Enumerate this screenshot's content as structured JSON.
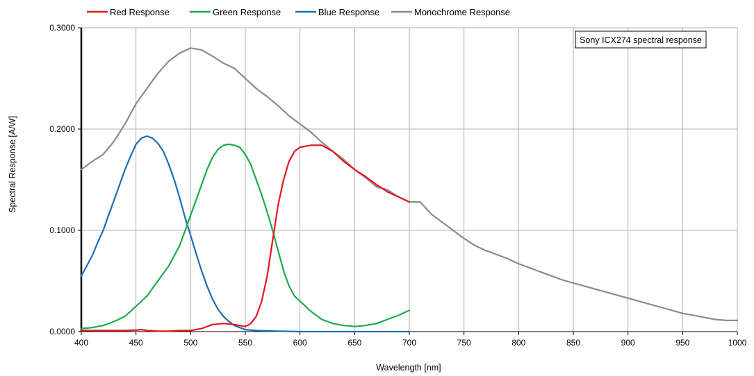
{
  "chart_data": {
    "type": "line",
    "title": "",
    "annotation": "Sony ICX274 spectral response",
    "xlabel": "Wavelength [nm]",
    "ylabel": "Spectral Response [A/W]",
    "xlim": [
      400,
      1000
    ],
    "ylim": [
      0,
      0.3
    ],
    "x_ticks": [
      "400",
      "450",
      "500",
      "550",
      "600",
      "650",
      "700",
      "750",
      "800",
      "850",
      "900",
      "950",
      "1000"
    ],
    "y_ticks": [
      "0.0000",
      "0.1000",
      "0.2000",
      "0.3000"
    ],
    "grid": true,
    "legend_position": "top",
    "series": [
      {
        "name": "Red Response",
        "color": "#e8141c",
        "points": [
          [
            400,
            0.001
          ],
          [
            420,
            0.001
          ],
          [
            440,
            0.001
          ],
          [
            450,
            0.0015
          ],
          [
            455,
            0.002
          ],
          [
            460,
            0.001
          ],
          [
            470,
            0.0005
          ],
          [
            480,
            0.0005
          ],
          [
            490,
            0.001
          ],
          [
            500,
            0.001
          ],
          [
            510,
            0.003
          ],
          [
            520,
            0.007
          ],
          [
            530,
            0.008
          ],
          [
            540,
            0.007
          ],
          [
            550,
            0.005
          ],
          [
            555,
            0.008
          ],
          [
            560,
            0.015
          ],
          [
            565,
            0.03
          ],
          [
            570,
            0.055
          ],
          [
            575,
            0.09
          ],
          [
            580,
            0.125
          ],
          [
            585,
            0.15
          ],
          [
            590,
            0.168
          ],
          [
            595,
            0.178
          ],
          [
            600,
            0.182
          ],
          [
            610,
            0.184
          ],
          [
            620,
            0.184
          ],
          [
            630,
            0.178
          ],
          [
            640,
            0.168
          ],
          [
            650,
            0.16
          ],
          [
            660,
            0.153
          ],
          [
            670,
            0.145
          ],
          [
            680,
            0.138
          ],
          [
            690,
            0.133
          ],
          [
            700,
            0.128
          ]
        ]
      },
      {
        "name": "Green Response",
        "color": "#1aab4a",
        "points": [
          [
            400,
            0.003
          ],
          [
            410,
            0.004
          ],
          [
            420,
            0.006
          ],
          [
            430,
            0.01
          ],
          [
            440,
            0.015
          ],
          [
            450,
            0.025
          ],
          [
            460,
            0.035
          ],
          [
            470,
            0.05
          ],
          [
            480,
            0.065
          ],
          [
            490,
            0.085
          ],
          [
            495,
            0.1
          ],
          [
            500,
            0.115
          ],
          [
            505,
            0.13
          ],
          [
            510,
            0.145
          ],
          [
            515,
            0.16
          ],
          [
            520,
            0.172
          ],
          [
            525,
            0.18
          ],
          [
            530,
            0.184
          ],
          [
            535,
            0.185
          ],
          [
            540,
            0.184
          ],
          [
            545,
            0.182
          ],
          [
            550,
            0.175
          ],
          [
            555,
            0.165
          ],
          [
            560,
            0.15
          ],
          [
            565,
            0.135
          ],
          [
            570,
            0.118
          ],
          [
            575,
            0.1
          ],
          [
            580,
            0.08
          ],
          [
            585,
            0.06
          ],
          [
            590,
            0.045
          ],
          [
            595,
            0.035
          ],
          [
            600,
            0.03
          ],
          [
            610,
            0.02
          ],
          [
            620,
            0.012
          ],
          [
            630,
            0.008
          ],
          [
            640,
            0.006
          ],
          [
            650,
            0.005
          ],
          [
            660,
            0.006
          ],
          [
            670,
            0.008
          ],
          [
            680,
            0.012
          ],
          [
            690,
            0.016
          ],
          [
            700,
            0.021
          ]
        ]
      },
      {
        "name": "Blue Response",
        "color": "#1a6db5",
        "points": [
          [
            400,
            0.055
          ],
          [
            405,
            0.065
          ],
          [
            410,
            0.075
          ],
          [
            415,
            0.088
          ],
          [
            420,
            0.1
          ],
          [
            425,
            0.115
          ],
          [
            430,
            0.13
          ],
          [
            435,
            0.145
          ],
          [
            440,
            0.16
          ],
          [
            445,
            0.173
          ],
          [
            450,
            0.185
          ],
          [
            455,
            0.191
          ],
          [
            460,
            0.193
          ],
          [
            465,
            0.191
          ],
          [
            470,
            0.186
          ],
          [
            475,
            0.178
          ],
          [
            480,
            0.165
          ],
          [
            485,
            0.15
          ],
          [
            490,
            0.132
          ],
          [
            495,
            0.112
          ],
          [
            500,
            0.095
          ],
          [
            505,
            0.077
          ],
          [
            510,
            0.06
          ],
          [
            515,
            0.045
          ],
          [
            520,
            0.032
          ],
          [
            525,
            0.022
          ],
          [
            530,
            0.015
          ],
          [
            535,
            0.01
          ],
          [
            540,
            0.006
          ],
          [
            545,
            0.004
          ],
          [
            550,
            0.002
          ],
          [
            560,
            0.001
          ],
          [
            580,
            0.0005
          ],
          [
            600,
            0.0
          ],
          [
            650,
            0.0
          ],
          [
            700,
            0.0
          ]
        ]
      },
      {
        "name": "Monochrome Response",
        "color": "#8a8a8a",
        "points": [
          [
            400,
            0.16
          ],
          [
            410,
            0.168
          ],
          [
            420,
            0.175
          ],
          [
            430,
            0.188
          ],
          [
            440,
            0.205
          ],
          [
            450,
            0.225
          ],
          [
            460,
            0.24
          ],
          [
            470,
            0.255
          ],
          [
            480,
            0.267
          ],
          [
            490,
            0.275
          ],
          [
            500,
            0.28
          ],
          [
            510,
            0.278
          ],
          [
            520,
            0.272
          ],
          [
            530,
            0.265
          ],
          [
            540,
            0.26
          ],
          [
            550,
            0.25
          ],
          [
            560,
            0.24
          ],
          [
            570,
            0.232
          ],
          [
            580,
            0.223
          ],
          [
            590,
            0.213
          ],
          [
            600,
            0.205
          ],
          [
            610,
            0.197
          ],
          [
            620,
            0.187
          ],
          [
            630,
            0.178
          ],
          [
            640,
            0.17
          ],
          [
            650,
            0.16
          ],
          [
            660,
            0.152
          ],
          [
            670,
            0.143
          ],
          [
            680,
            0.14
          ],
          [
            690,
            0.133
          ],
          [
            700,
            0.128
          ],
          [
            710,
            0.128
          ],
          [
            720,
            0.116
          ],
          [
            730,
            0.108
          ],
          [
            740,
            0.1
          ],
          [
            750,
            0.092
          ],
          [
            760,
            0.085
          ],
          [
            770,
            0.08
          ],
          [
            780,
            0.076
          ],
          [
            790,
            0.072
          ],
          [
            800,
            0.067
          ],
          [
            810,
            0.063
          ],
          [
            820,
            0.059
          ],
          [
            830,
            0.055
          ],
          [
            840,
            0.051
          ],
          [
            850,
            0.048
          ],
          [
            860,
            0.045
          ],
          [
            870,
            0.042
          ],
          [
            880,
            0.039
          ],
          [
            890,
            0.036
          ],
          [
            900,
            0.033
          ],
          [
            910,
            0.03
          ],
          [
            920,
            0.027
          ],
          [
            930,
            0.024
          ],
          [
            940,
            0.021
          ],
          [
            950,
            0.018
          ],
          [
            960,
            0.016
          ],
          [
            970,
            0.014
          ],
          [
            980,
            0.012
          ],
          [
            990,
            0.011
          ],
          [
            1000,
            0.011
          ]
        ]
      }
    ]
  }
}
